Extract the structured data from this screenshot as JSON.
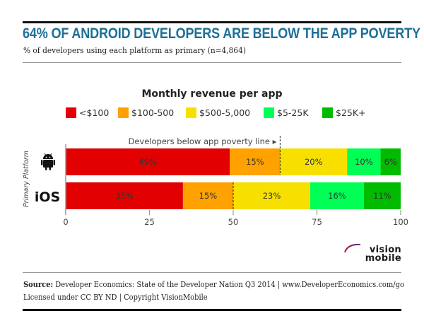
{
  "header": {
    "title": "64% OF ANDROID DEVELOPERS ARE BELOW THE APP POVERTY LINE",
    "subtitle": "% of developers using each platform as primary (n=4,864)"
  },
  "footer": {
    "source_label": "Source:",
    "source_text": " Developer Economics: State of the Developer Nation Q3 2014 | www.DeveloperEconomics.com/go",
    "license": "Licensed under CC BY ND | Copyright VisionMobile",
    "logo_line1": "vision",
    "logo_line2": "mobile"
  },
  "chart_data": {
    "type": "bar",
    "orientation": "horizontal",
    "stacked": true,
    "title": "Monthly revenue per app",
    "ylabel": "Primary Platform",
    "xlabel": "",
    "xlim": [
      0,
      100
    ],
    "xticks": [
      "0",
      "25",
      "50",
      "75",
      "100"
    ],
    "xtick_values": [
      0,
      25,
      50,
      75,
      100
    ],
    "legend_position": "top",
    "categories": [
      "Android",
      "iOS"
    ],
    "category_icons": [
      "android-icon",
      null
    ],
    "category_labels": [
      "",
      "iOS"
    ],
    "series": [
      {
        "name": "<$100",
        "color": "#e30000",
        "values": [
          49,
          35
        ],
        "labels": [
          "49%",
          "35%"
        ]
      },
      {
        "name": "$100-500",
        "color": "#ffa200",
        "values": [
          15,
          15
        ],
        "labels": [
          "15%",
          "15%"
        ]
      },
      {
        "name": "$500-5,000",
        "color": "#f7e000",
        "values": [
          20,
          23
        ],
        "labels": [
          "20%",
          "23%"
        ]
      },
      {
        "name": "$5-25K",
        "color": "#00ff55",
        "values": [
          10,
          16
        ],
        "labels": [
          "10%",
          "16%"
        ]
      },
      {
        "name": "$25K+",
        "color": "#00bb00",
        "values": [
          6,
          11
        ],
        "labels": [
          "6%",
          "11%"
        ]
      }
    ],
    "annotation": {
      "text": "Developers below app poverty line ▸",
      "poverty_line_values": [
        64,
        50
      ]
    }
  }
}
